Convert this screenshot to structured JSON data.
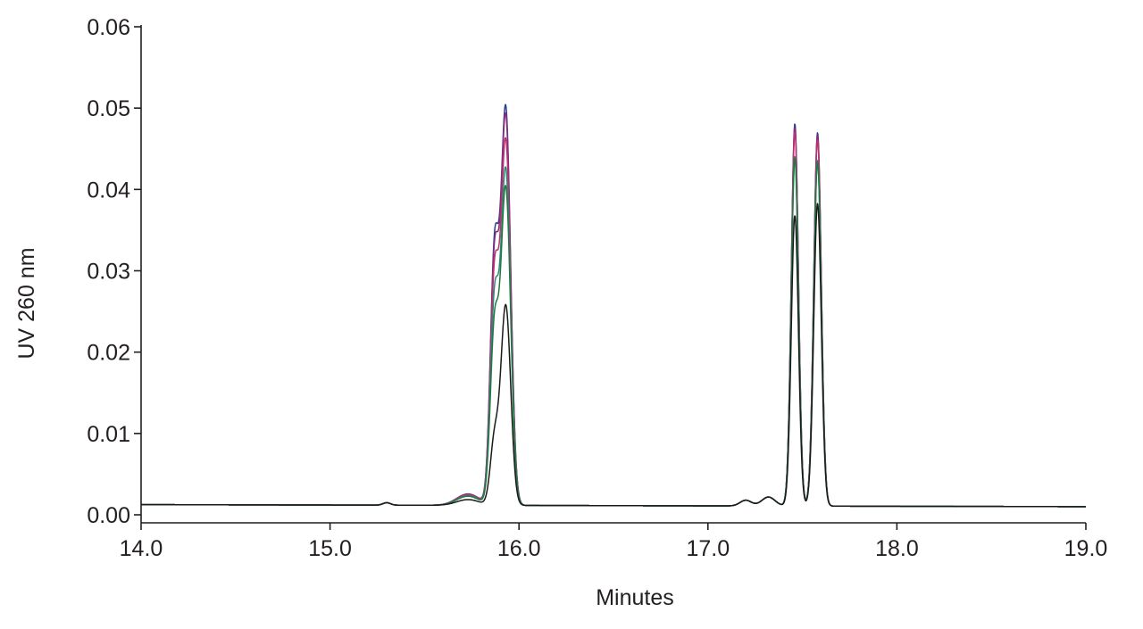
{
  "chart_data": {
    "type": "line",
    "title": "",
    "xlabel": "Minutes",
    "ylabel": "UV 260 nm",
    "xlim": [
      14.0,
      19.0
    ],
    "ylim": [
      0.0,
      0.06
    ],
    "x_ticks": [
      "14.0",
      "15.0",
      "16.0",
      "17.0",
      "18.0",
      "19.0"
    ],
    "y_ticks": [
      "0.00",
      "0.01",
      "0.02",
      "0.03",
      "0.04",
      "0.05",
      "0.06"
    ],
    "grid": false,
    "legend": "none",
    "series_colors": [
      "#2e3f8f",
      "#8e2a7c",
      "#c0306e",
      "#2a8a78",
      "#1e7a40",
      "#1a1a1a"
    ],
    "series": [
      {
        "peaks": {
          "15.87": 0.03,
          "15.93": 0.0485,
          "17.46": 0.047,
          "17.58": 0.0459
        }
      },
      {
        "peaks": {
          "15.87": 0.029,
          "15.93": 0.0475,
          "17.46": 0.0465,
          "17.58": 0.0455
        }
      },
      {
        "peaks": {
          "15.87": 0.027,
          "15.93": 0.0445,
          "17.46": 0.046,
          "17.58": 0.045
        }
      },
      {
        "peaks": {
          "15.87": 0.024,
          "15.93": 0.041,
          "17.46": 0.043,
          "17.58": 0.0425
        }
      },
      {
        "peaks": {
          "15.87": 0.021,
          "15.93": 0.0388,
          "17.46": 0.0428,
          "17.58": 0.0423
        }
      },
      {
        "peaks": {
          "15.87": 0.0078,
          "15.93": 0.0245,
          "17.46": 0.0357,
          "17.58": 0.0372
        }
      }
    ]
  }
}
